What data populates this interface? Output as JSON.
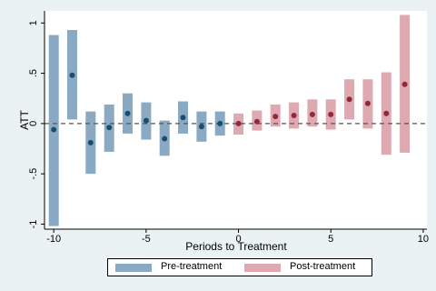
{
  "chart_data": {
    "type": "bar",
    "title": "",
    "xlabel": "Periods to Treatment",
    "ylabel": "ATT",
    "xlim": [
      -10.5,
      10.2
    ],
    "ylim": [
      -1.05,
      1.12
    ],
    "x_ticks": [
      -10,
      -5,
      0,
      5,
      10
    ],
    "x_tick_labels": [
      "-10",
      "-5",
      "0",
      "5",
      "10"
    ],
    "y_ticks": [
      -1,
      -0.5,
      0,
      0.5,
      1
    ],
    "y_tick_labels": [
      "-1",
      "-.5",
      "0",
      ".5",
      "1"
    ],
    "grid": false,
    "reference_line": 0,
    "legend_position": "bottom",
    "series": [
      {
        "name": "Pre-treatment",
        "color_bar": "#8aaac3",
        "color_point": "#1a4d6e",
        "x": [
          -10,
          -9,
          -8,
          -7,
          -6,
          -5,
          -4,
          -3,
          -2,
          -1
        ],
        "estimate": [
          -0.06,
          0.48,
          -0.19,
          -0.04,
          0.1,
          0.03,
          -0.15,
          0.06,
          -0.03,
          0.0
        ],
        "ci_low": [
          -1.02,
          0.04,
          -0.5,
          -0.28,
          -0.1,
          -0.16,
          -0.32,
          -0.1,
          -0.18,
          -0.12
        ],
        "ci_high": [
          0.88,
          0.93,
          0.12,
          0.19,
          0.3,
          0.21,
          0.03,
          0.22,
          0.12,
          0.12
        ]
      },
      {
        "name": "Post-treatment",
        "color_bar": "#dfa9b1",
        "color_point": "#8e2a3a",
        "x": [
          0,
          1,
          2,
          3,
          4,
          5,
          6,
          7,
          8,
          9
        ],
        "estimate": [
          0.0,
          0.02,
          0.07,
          0.08,
          0.09,
          0.09,
          0.24,
          0.2,
          0.1,
          0.39
        ],
        "ci_low": [
          -0.11,
          -0.07,
          -0.03,
          -0.05,
          -0.03,
          -0.06,
          0.04,
          -0.05,
          -0.31,
          -0.29
        ],
        "ci_high": [
          0.1,
          0.13,
          0.19,
          0.21,
          0.24,
          0.24,
          0.44,
          0.44,
          0.51,
          1.08
        ]
      }
    ]
  },
  "legend": {
    "pre_label": "Pre-treatment",
    "post_label": "Post-treatment"
  }
}
